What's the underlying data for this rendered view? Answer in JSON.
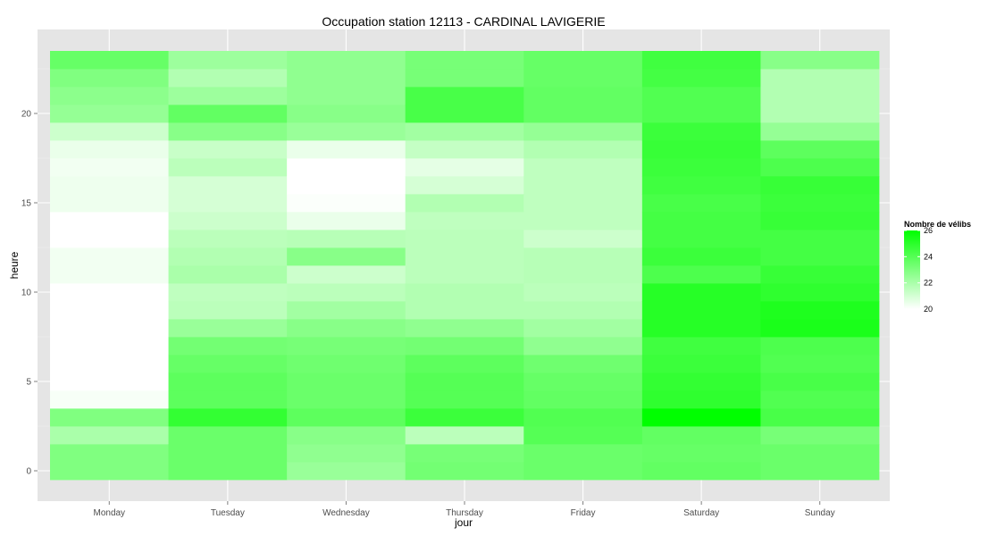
{
  "chart_data": {
    "type": "heatmap",
    "title": "Occupation station 12113 - CARDINAL LAVIGERIE",
    "xlabel": "jour",
    "ylabel": "heure",
    "categories": [
      "Monday",
      "Tuesday",
      "Wednesday",
      "Thursday",
      "Friday",
      "Saturday",
      "Sunday"
    ],
    "hours": [
      0,
      1,
      2,
      3,
      4,
      5,
      6,
      7,
      8,
      9,
      10,
      11,
      12,
      13,
      14,
      15,
      16,
      17,
      18,
      19,
      20,
      21,
      22,
      23
    ],
    "y_ticks": [
      0,
      5,
      10,
      15,
      20
    ],
    "ylim": [
      -0.5,
      23.5
    ],
    "grid": true,
    "legend": {
      "title": "Nombre de vélibs",
      "min": 20,
      "max": 26,
      "ticks": [
        20,
        22,
        24,
        26
      ],
      "low_color": "#ffffff",
      "high_color": "#00ff00",
      "placement": "right"
    },
    "values": [
      [
        23.0,
        23.0,
        22.0,
        23.0,
        20.2,
        20.0,
        20.0,
        20.0,
        20.0,
        20.0,
        20.0,
        20.3,
        20.3,
        20.0,
        20.0,
        20.4,
        20.4,
        20.3,
        20.5,
        21.2,
        22.5,
        22.7,
        23.0,
        23.6
      ],
      [
        23.5,
        23.5,
        23.5,
        24.8,
        23.8,
        23.8,
        23.6,
        23.3,
        22.4,
        21.6,
        21.5,
        22.0,
        21.8,
        21.6,
        21.2,
        21.0,
        21.0,
        21.6,
        21.3,
        22.8,
        23.7,
        22.3,
        21.8,
        22.3
      ],
      [
        22.4,
        22.6,
        22.8,
        23.8,
        23.5,
        23.5,
        23.4,
        23.2,
        22.8,
        22.2,
        21.6,
        21.2,
        22.8,
        21.7,
        20.5,
        20.1,
        20.0,
        20.0,
        20.5,
        22.4,
        22.8,
        22.6,
        22.6,
        22.6
      ],
      [
        23.3,
        23.2,
        21.6,
        24.6,
        24.0,
        24.0,
        23.8,
        23.3,
        22.6,
        21.8,
        21.8,
        21.6,
        21.6,
        21.6,
        21.5,
        21.8,
        21.0,
        20.6,
        21.4,
        22.2,
        24.3,
        24.3,
        23.2,
        23.2
      ],
      [
        23.5,
        23.5,
        24.0,
        24.1,
        23.7,
        23.6,
        23.4,
        22.6,
        22.2,
        21.8,
        21.6,
        21.7,
        21.7,
        21.2,
        21.5,
        21.5,
        21.5,
        21.5,
        21.8,
        22.5,
        23.7,
        23.7,
        23.6,
        23.6
      ],
      [
        23.7,
        23.6,
        23.7,
        26.0,
        24.9,
        24.8,
        24.6,
        24.5,
        25.1,
        25.1,
        25.1,
        24.2,
        24.6,
        24.4,
        24.4,
        24.3,
        24.5,
        24.6,
        24.7,
        24.6,
        24.1,
        24.1,
        24.4,
        24.5
      ],
      [
        23.5,
        23.5,
        23.2,
        24.3,
        24.1,
        24.3,
        24.1,
        24.2,
        25.4,
        25.3,
        24.9,
        24.7,
        24.4,
        24.4,
        24.7,
        24.6,
        24.7,
        24.2,
        23.8,
        22.5,
        21.8,
        21.8,
        21.8,
        22.8
      ]
    ]
  }
}
